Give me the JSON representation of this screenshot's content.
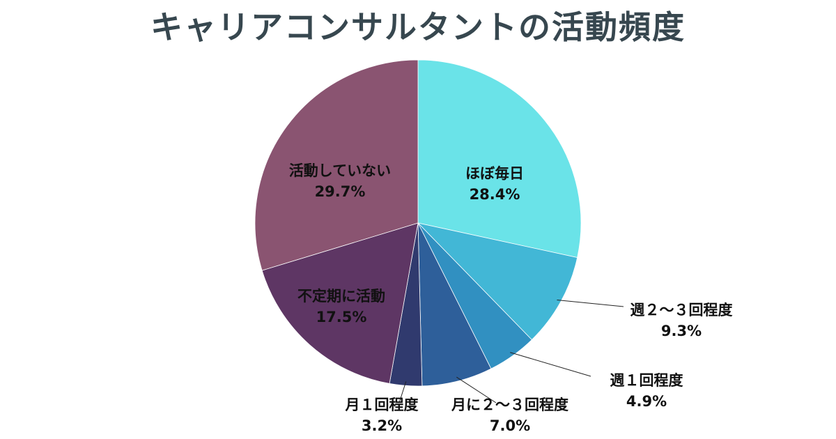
{
  "chart_data": {
    "type": "pie",
    "title": "キャリアコンサルタントの活動頻度",
    "start_angle": "12 o'clock, clockwise",
    "slices": [
      {
        "label": "ほぼ毎日",
        "value": 28.4,
        "value_text": "28.4%",
        "color": "#6ae3e8",
        "label_placement": "inside"
      },
      {
        "label": "週２～３回程度",
        "value": 9.3,
        "value_text": "9.3%",
        "color": "#42b7d6",
        "label_placement": "outside"
      },
      {
        "label": "週１回程度",
        "value": 4.9,
        "value_text": "4.9%",
        "color": "#3190c1",
        "label_placement": "outside"
      },
      {
        "label": "月に２～３回程度",
        "value": 7.0,
        "value_text": "7.0%",
        "color": "#2e5f9a",
        "label_placement": "outside"
      },
      {
        "label": "月１回程度",
        "value": 3.2,
        "value_text": "3.2%",
        "color": "#303a6e",
        "label_placement": "outside"
      },
      {
        "label": "不定期に活動",
        "value": 17.5,
        "value_text": "17.5%",
        "color": "#5e3664",
        "label_placement": "inside"
      },
      {
        "label": "活動していない",
        "value": 29.7,
        "value_text": "29.7%",
        "color": "#8a5471",
        "label_placement": "inside"
      }
    ]
  }
}
